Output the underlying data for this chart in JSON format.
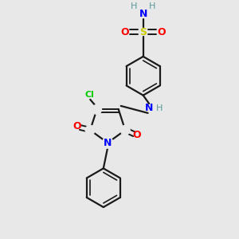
{
  "background_color": "#e8e8e8",
  "bond_color": "#1a1a1a",
  "atom_colors": {
    "N": "#0000ff",
    "O": "#ff0000",
    "S": "#cccc00",
    "Cl": "#00cc00",
    "H": "#5a9a9a",
    "C": "#1a1a1a"
  },
  "figsize": [
    3.0,
    3.0
  ],
  "dpi": 100
}
